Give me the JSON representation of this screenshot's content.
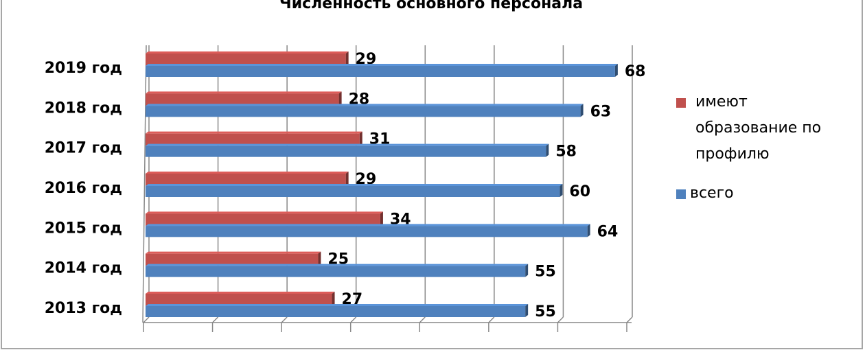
{
  "chart_data": {
    "type": "bar",
    "orientation": "horizontal",
    "title": "Численность основного персонала",
    "categories": [
      "2019 год",
      "2018 год",
      "2017 год",
      "2016 год",
      "2015 год",
      "2014 год",
      "2013 год"
    ],
    "series": [
      {
        "name": "имеют образование по профилю",
        "color": "#c0504d",
        "values": [
          29,
          28,
          31,
          29,
          34,
          25,
          27
        ]
      },
      {
        "name": "всего",
        "color": "#4f81bd",
        "values": [
          68,
          63,
          58,
          60,
          64,
          55,
          55
        ]
      }
    ],
    "xlim": [
      0,
      70
    ],
    "xticks": [
      0,
      10,
      20,
      30,
      40,
      50,
      60,
      70
    ],
    "grid": true,
    "legend": "right"
  }
}
